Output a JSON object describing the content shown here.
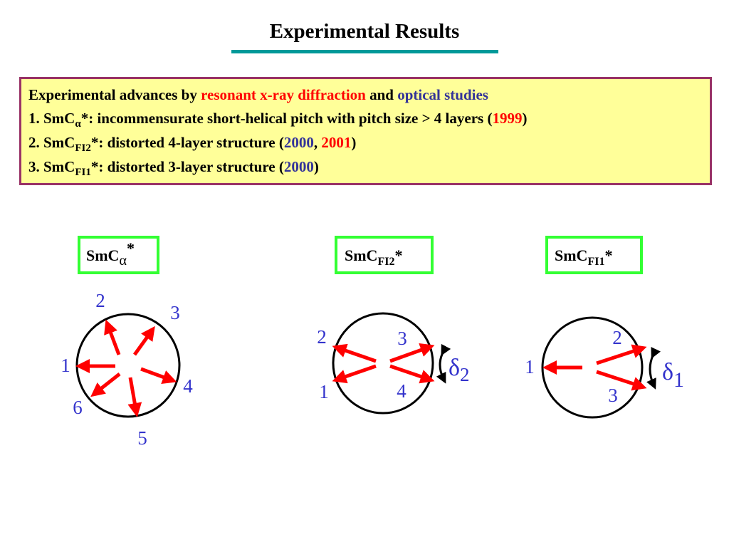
{
  "title": "Experimental Results",
  "box": {
    "lines": [
      [
        "Experimental advances by",
        "resonant x-ray diffraction",
        "and",
        "optical studies"
      ],
      [
        "1. SmC",
        "α",
        "*: incommensurate short-helical pitch with pitch size > 4 layers (",
        "1999",
        ")"
      ],
      [
        "2. SmC",
        "FI2",
        "*: distorted 4-layer structure (",
        "2000",
        ",",
        "2001",
        ")"
      ],
      [
        "3. SmC",
        "FI1",
        "*: distorted 3-layer structure (",
        "2000",
        ")"
      ]
    ]
  },
  "panels": [
    {
      "label": {
        "base": "SmC",
        "sub": "α",
        "sup": "*"
      },
      "numbers": [
        "2",
        "3",
        "1",
        "4",
        "6",
        "5"
      ]
    },
    {
      "label": {
        "base": "SmC",
        "sub": "FI2",
        "sup": "*"
      },
      "numbers": [
        "2",
        "3",
        "1",
        "4"
      ],
      "delta": {
        "symbol": "δ",
        "sub": "2"
      }
    },
    {
      "label": {
        "base": "SmC",
        "sub": "FI1",
        "sup": "*"
      },
      "numbers": [
        "2",
        "1",
        "3"
      ],
      "delta": {
        "symbol": "δ",
        "sub": "1"
      }
    }
  ]
}
